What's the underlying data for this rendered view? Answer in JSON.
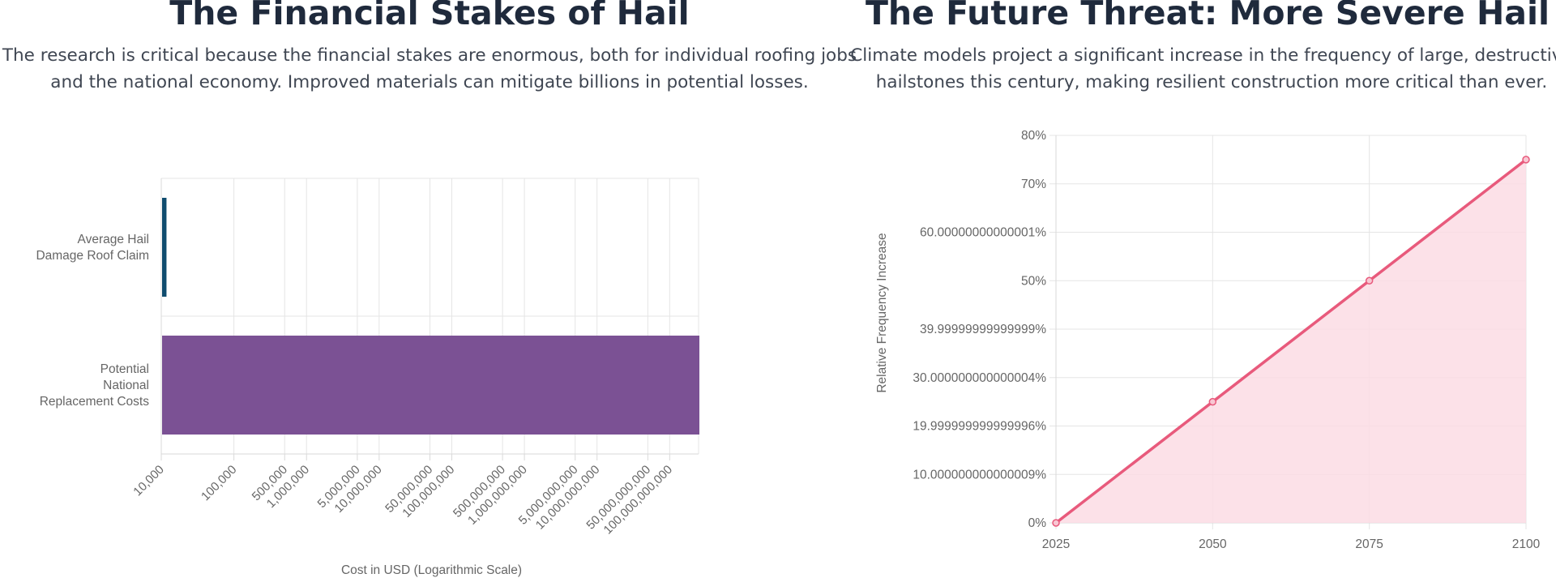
{
  "left": {
    "title": "The Financial Stakes of Hail",
    "description": "The research is critical because the financial stakes are enormous, both for individual roofing jobs and the national economy. Improved materials can mitigate billions in potential losses."
  },
  "right": {
    "title": "The Future Threat: More Severe Hail",
    "description": "Climate models project a significant increase in the frequency of large, destructive hailstones this century, making resilient construction more critical than ever."
  },
  "chart_data": [
    {
      "type": "bar",
      "orientation": "horizontal",
      "scale": "log",
      "categories": [
        [
          "Average Hail",
          "Damage Roof Claim"
        ],
        [
          "Potential",
          "National",
          "Replacement Costs"
        ]
      ],
      "values": [
        11500,
        250000000000
      ],
      "colors": [
        "#0f4c6e",
        "#7b5194"
      ],
      "xlabel": "Cost in USD (Logarithmic Scale)",
      "xlim": [
        10000,
        250000000000
      ],
      "tick_values": [
        10000,
        100000,
        500000,
        1000000,
        5000000,
        10000000,
        50000000,
        100000000,
        500000000,
        1000000000,
        5000000000,
        10000000000,
        50000000000,
        100000000000
      ],
      "tick_labels": [
        "10,000",
        "100,000",
        "500,000",
        "1,000,000",
        "5,000,000",
        "10,000,000",
        "50,000,000",
        "100,000,000",
        "500,000,000",
        "1,000,000,000",
        "5,000,000,000",
        "10,000,000,000",
        "50,000,000,000",
        "100,000,000,000"
      ],
      "grid": true,
      "legend": "none"
    },
    {
      "type": "area",
      "x": [
        "2025",
        "2050",
        "2075",
        "2100"
      ],
      "values": [
        0,
        25,
        50,
        75
      ],
      "ylabel": "Relative Frequency Increase",
      "ylim": [
        0,
        80
      ],
      "y_ticks": [
        0,
        10,
        20,
        30,
        40,
        50,
        60,
        70,
        80
      ],
      "y_tick_labels": [
        "0%",
        "10.000000000000009%",
        "19.999999999999996%",
        "30.000000000000004%",
        "39.99999999999999%",
        "50%",
        "60.00000000000001%",
        "70%",
        "80%"
      ],
      "line_color": "#e85a7c",
      "fill_color": "#fcdce4",
      "grid": true,
      "legend": "none"
    }
  ]
}
